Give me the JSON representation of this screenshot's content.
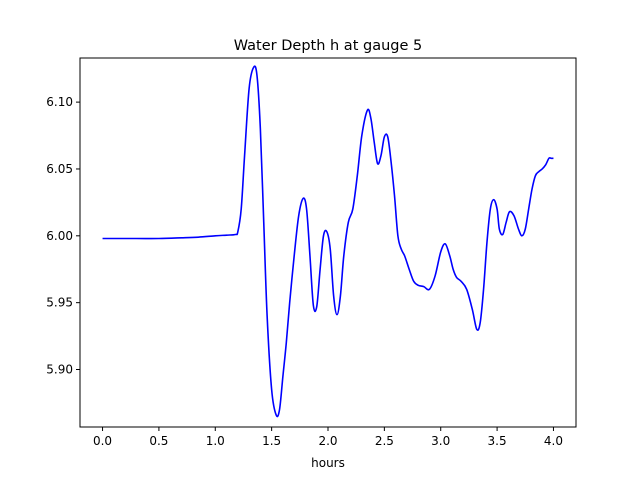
{
  "chart_data": {
    "type": "line",
    "title": "Water Depth h at gauge 5",
    "xlabel": "hours",
    "ylabel": "",
    "xlim": [
      -0.2,
      4.2
    ],
    "ylim": [
      5.857,
      6.133
    ],
    "xticks": [
      0.0,
      0.5,
      1.0,
      1.5,
      2.0,
      2.5,
      3.0,
      3.5,
      4.0
    ],
    "xtick_labels": [
      "0.0",
      "0.5",
      "1.0",
      "1.5",
      "2.0",
      "2.5",
      "3.0",
      "3.5",
      "4.0"
    ],
    "yticks": [
      5.9,
      5.95,
      6.0,
      6.05,
      6.1
    ],
    "ytick_labels": [
      "5.90",
      "5.95",
      "6.00",
      "6.05",
      "6.10"
    ],
    "grid": false,
    "series": [
      {
        "color": "#0000ff",
        "x": [
          0.0,
          0.3,
          0.5,
          0.7,
          0.85,
          1.0,
          1.1,
          1.18,
          1.2,
          1.23,
          1.26,
          1.3,
          1.34,
          1.37,
          1.4,
          1.43,
          1.46,
          1.5,
          1.54,
          1.57,
          1.6,
          1.63,
          1.66,
          1.7,
          1.74,
          1.78,
          1.81,
          1.84,
          1.87,
          1.9,
          1.93,
          1.96,
          1.99,
          2.02,
          2.05,
          2.08,
          2.11,
          2.14,
          2.18,
          2.22,
          2.26,
          2.3,
          2.35,
          2.38,
          2.41,
          2.44,
          2.47,
          2.5,
          2.53,
          2.56,
          2.59,
          2.62,
          2.65,
          2.68,
          2.72,
          2.76,
          2.8,
          2.85,
          2.9,
          2.95,
          3.0,
          3.04,
          3.08,
          3.11,
          3.14,
          3.18,
          3.23,
          3.28,
          3.32,
          3.35,
          3.38,
          3.41,
          3.44,
          3.47,
          3.5,
          3.52,
          3.55,
          3.58,
          3.61,
          3.65,
          3.69,
          3.72,
          3.75,
          3.78,
          3.81,
          3.84,
          3.87,
          3.9,
          3.93,
          3.96,
          3.98,
          4.0
        ],
        "y": [
          5.998,
          5.998,
          5.998,
          5.9985,
          5.999,
          6.0,
          6.0005,
          6.001,
          6.003,
          6.02,
          6.06,
          6.11,
          6.126,
          6.12,
          6.08,
          6.01,
          5.94,
          5.885,
          5.866,
          5.87,
          5.895,
          5.92,
          5.95,
          5.985,
          6.015,
          6.028,
          6.02,
          5.985,
          5.948,
          5.947,
          5.975,
          6.0,
          6.003,
          5.99,
          5.955,
          5.941,
          5.955,
          5.985,
          6.01,
          6.02,
          6.045,
          6.075,
          6.094,
          6.088,
          6.07,
          6.054,
          6.06,
          6.074,
          6.074,
          6.055,
          6.03,
          6.0,
          5.99,
          5.985,
          5.975,
          5.966,
          5.963,
          5.962,
          5.96,
          5.97,
          5.988,
          5.994,
          5.985,
          5.975,
          5.969,
          5.966,
          5.96,
          5.945,
          5.93,
          5.935,
          5.96,
          5.995,
          6.02,
          6.027,
          6.02,
          6.005,
          6.001,
          6.01,
          6.018,
          6.015,
          6.005,
          6.0,
          6.005,
          6.02,
          6.035,
          6.045,
          6.048,
          6.05,
          6.053,
          6.058,
          6.058,
          6.058
        ]
      }
    ]
  }
}
